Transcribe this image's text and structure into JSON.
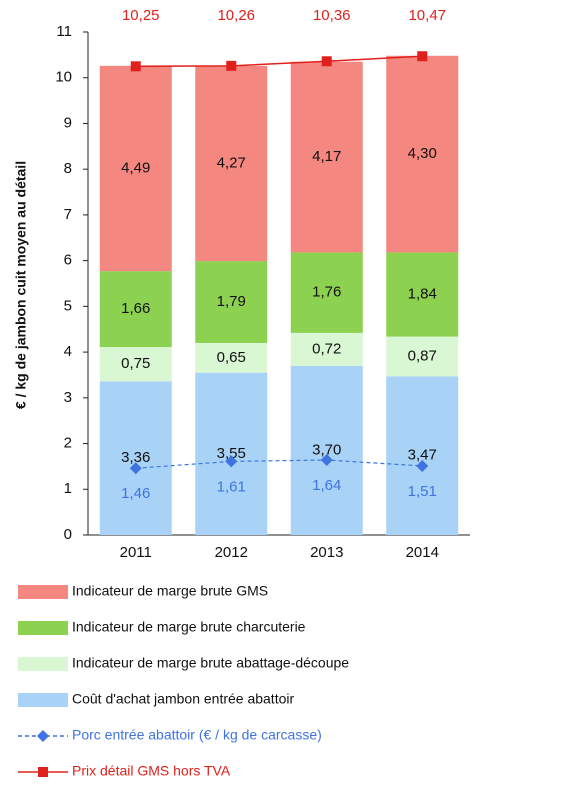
{
  "chart_data": {
    "type": "bar",
    "stacked": true,
    "y_label": "€ / kg de jambon cuit moyen au détail",
    "categories": [
      "2011",
      "2012",
      "2013",
      "2014"
    ],
    "ylim": [
      0,
      11
    ],
    "yticks": [
      0,
      1,
      2,
      3,
      4,
      5,
      6,
      7,
      8,
      9,
      10,
      11
    ],
    "series": [
      {
        "name": "Coût d'achat jambon entrée abattoir",
        "color": "#a9d2f7",
        "values": [
          3.36,
          3.55,
          3.7,
          3.47
        ],
        "value_labels": [
          "3,36",
          "3,55",
          "3,70",
          "3,47"
        ]
      },
      {
        "name": "Indicateur de marge brute abattage-découpe",
        "color": "#d8f7d2",
        "values": [
          0.75,
          0.65,
          0.72,
          0.87
        ],
        "value_labels": [
          "0,75",
          "0,65",
          "0,72",
          "0,87"
        ]
      },
      {
        "name": "Indicateur de marge brute charcuterie",
        "color": "#8dd150",
        "values": [
          1.66,
          1.79,
          1.76,
          1.84
        ],
        "value_labels": [
          "1,66",
          "1,79",
          "1,76",
          "1,84"
        ]
      },
      {
        "name": "Indicateur de marge brute GMS",
        "color": "#f4877f",
        "values": [
          4.49,
          4.27,
          4.17,
          4.3
        ],
        "value_labels": [
          "4,49",
          "4,27",
          "4,17",
          "4,30"
        ]
      },
      {
        "name": "Porc entrée abattoir (€ / kg de carcasse)",
        "type": "line",
        "style": "dashed",
        "marker": "diamond",
        "color": "#3f74e0",
        "values": [
          1.46,
          1.61,
          1.64,
          1.51
        ],
        "value_labels": [
          "1,46",
          "1,61",
          "1,64",
          "1,51"
        ]
      },
      {
        "name": "Prix détail GMS hors TVA",
        "type": "line",
        "style": "solid",
        "marker": "square",
        "color": "#e0201c",
        "values": [
          10.25,
          10.26,
          10.36,
          10.47
        ],
        "value_labels": [
          "10,25",
          "10,26",
          "10,36",
          "10,47"
        ]
      }
    ]
  }
}
